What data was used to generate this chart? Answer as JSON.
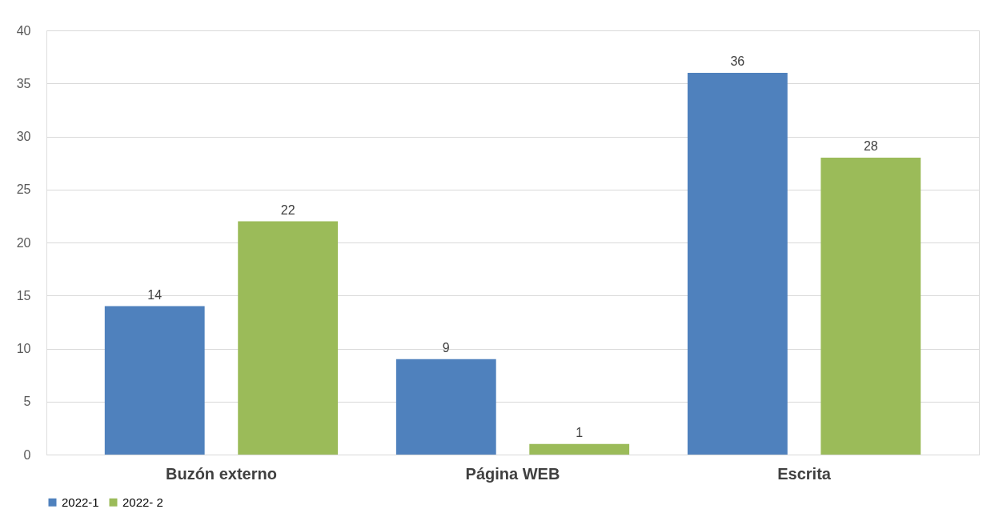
{
  "chart_data": {
    "type": "bar",
    "categories": [
      "Buzón externo",
      "Página WEB",
      "Escrita"
    ],
    "series": [
      {
        "name": "2022-1",
        "color": "#4f81bd",
        "values": [
          14,
          9,
          36
        ]
      },
      {
        "name": "2022- 2",
        "color": "#9bbb59",
        "values": [
          22,
          1,
          28
        ]
      }
    ],
    "ylim": [
      0,
      40
    ],
    "yticks": [
      0,
      5,
      10,
      15,
      20,
      25,
      30,
      35,
      40
    ],
    "grid": "y",
    "legend": "bottom",
    "data_labels": true
  }
}
